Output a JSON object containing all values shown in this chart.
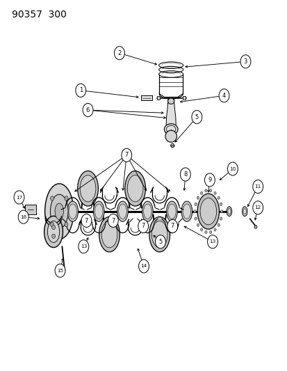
{
  "title": "90357  300",
  "bg": "#ffffff",
  "fg": "#000000",
  "fig_w": 4.14,
  "fig_h": 5.33,
  "dpi": 100,
  "title_fs": 10,
  "callout_r": 0.018,
  "callout_fs": 6.0,
  "callout_fs2": 5.2,
  "lw": 0.8
}
